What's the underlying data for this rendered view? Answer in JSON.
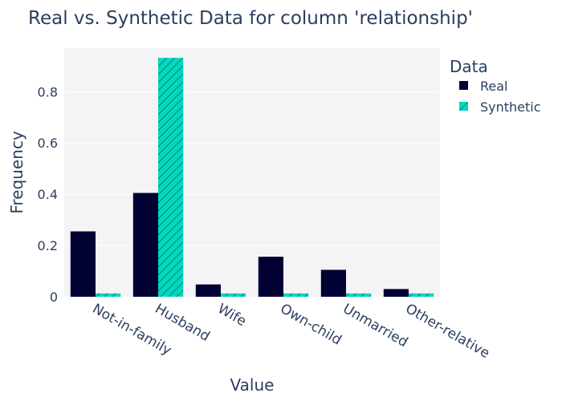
{
  "chart_data": {
    "type": "bar",
    "title": "Real vs. Synthetic Data for column 'relationship'",
    "xlabel": "Value",
    "ylabel": "Frequency",
    "categories": [
      "Not-in-family",
      "Husband",
      "Wife",
      "Own-child",
      "Unmarried",
      "Other-relative"
    ],
    "series": [
      {
        "name": "Real",
        "values": [
          0.255,
          0.405,
          0.048,
          0.156,
          0.105,
          0.03
        ],
        "color": "#000033",
        "pattern": "solid"
      },
      {
        "name": "Synthetic",
        "values": [
          0.013,
          0.932,
          0.013,
          0.013,
          0.013,
          0.013
        ],
        "color": "#00d9c0",
        "pattern": "diagonal-hatch"
      }
    ],
    "ylim": [
      0,
      0.97
    ],
    "yticks": [
      0,
      0.2,
      0.4,
      0.6,
      0.8
    ],
    "ytick_labels": [
      "0",
      "0.2",
      "0.4",
      "0.6",
      "0.8"
    ],
    "grid": true,
    "legend": {
      "title": "Data",
      "placement": "top-right-outside"
    },
    "colors": {
      "plot_bg": "#f4f4f6",
      "grid": "#ffffff",
      "text": "#2a3f5f"
    }
  }
}
